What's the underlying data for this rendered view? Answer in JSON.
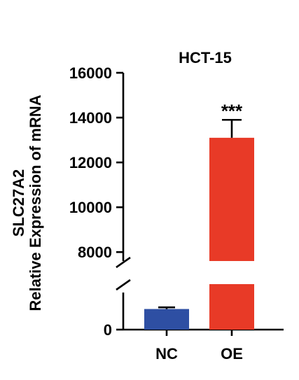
{
  "chart_data": {
    "type": "bar",
    "title": "HCT-15",
    "ylabel_line1": "SLC27A2",
    "ylabel_line2": "Relative Expression of mRNA",
    "xlabel": "",
    "categories": [
      "NC",
      "OE"
    ],
    "values": [
      1,
      13100
    ],
    "errors": [
      0.08,
      800
    ],
    "colors": [
      "#2e4fa3",
      "#e83a27"
    ],
    "significance": [
      "",
      "***"
    ],
    "y_axis_break": true,
    "y_segments": [
      {
        "ylim": [
          0,
          1.8
        ],
        "ticks": [
          0
        ],
        "tick_labels": [
          "0"
        ]
      },
      {
        "ylim": [
          7600,
          16000
        ],
        "ticks": [
          8000,
          10000,
          12000,
          14000,
          16000
        ],
        "tick_labels": [
          "8000",
          "10000",
          "12000",
          "14000",
          "16000"
        ]
      }
    ],
    "grid": false,
    "legend": "none"
  }
}
